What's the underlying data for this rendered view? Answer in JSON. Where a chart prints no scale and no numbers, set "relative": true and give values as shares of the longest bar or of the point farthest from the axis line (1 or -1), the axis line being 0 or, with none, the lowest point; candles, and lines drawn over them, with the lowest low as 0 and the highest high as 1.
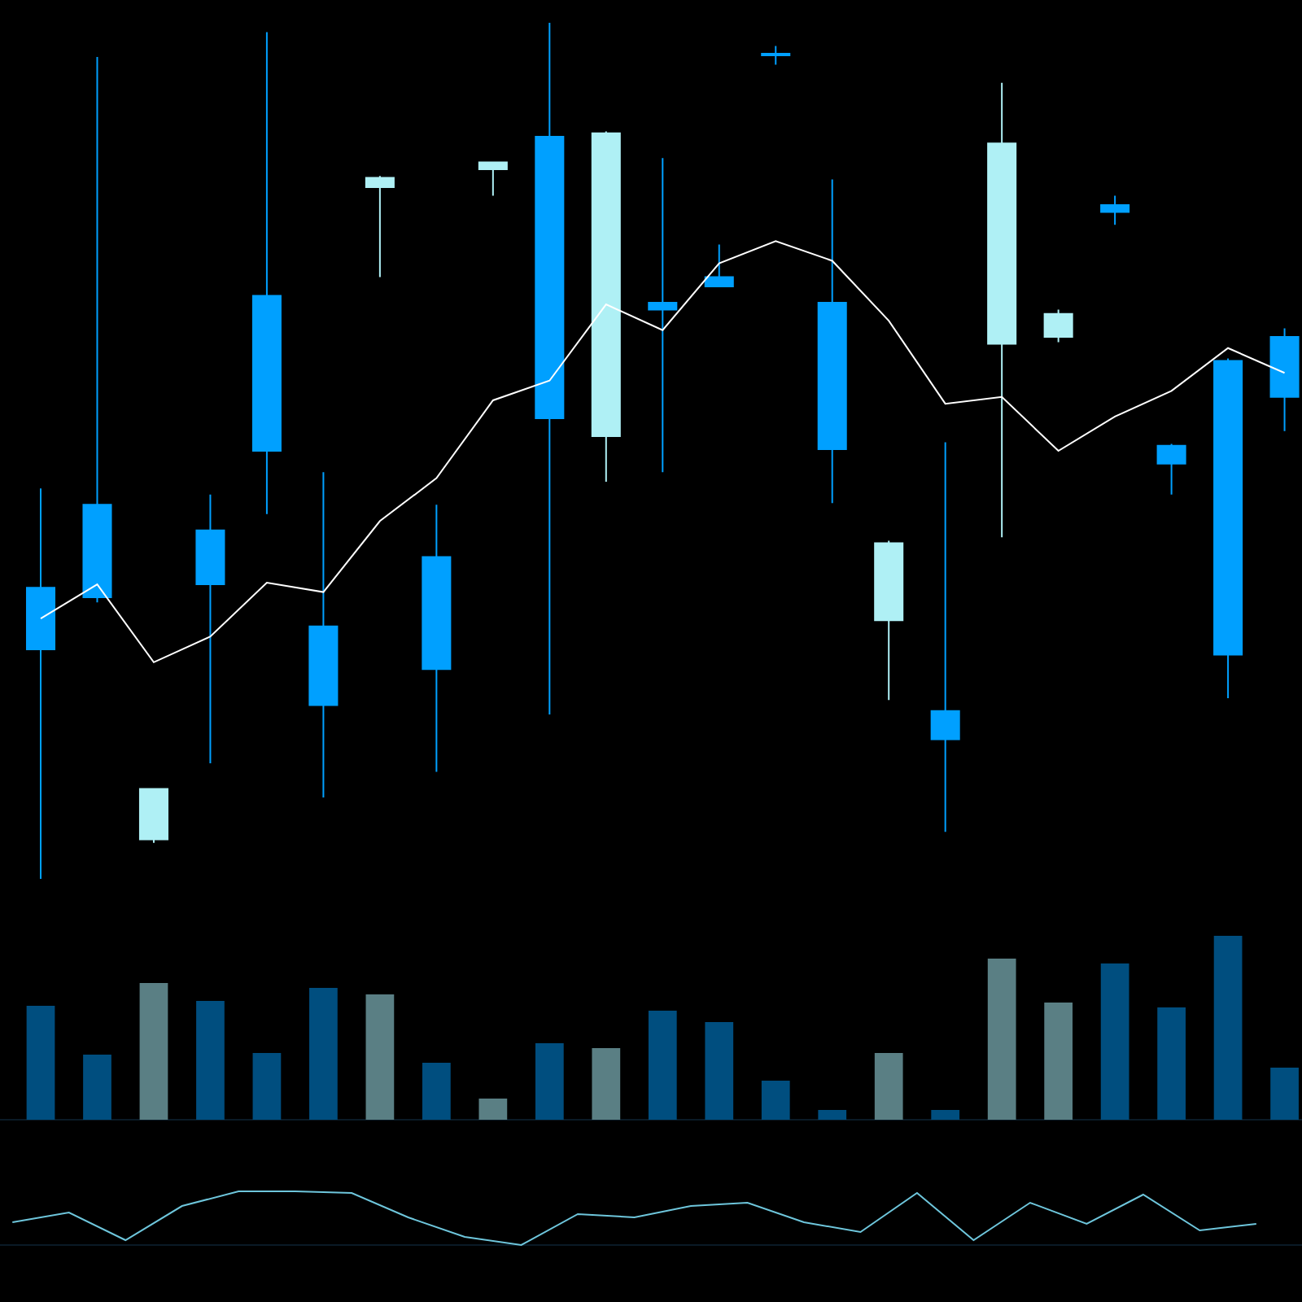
{
  "chart_data": [
    {
      "type": "candlestick",
      "relative": true,
      "categories": [
        null,
        null,
        null,
        null,
        null,
        null,
        null,
        null,
        null,
        null,
        null,
        null,
        null,
        null,
        null,
        null,
        null,
        null,
        null,
        null,
        null,
        null,
        null
      ],
      "ohlc": [
        [
          0.34,
          0.456,
          0,
          0.268
        ],
        [
          0.437,
          0.96,
          0.323,
          0.329
        ],
        [
          0.046,
          0.106,
          0.042,
          0.105
        ],
        [
          0.407,
          0.449,
          0.135,
          0.344
        ],
        [
          0.681,
          0.989,
          0.426,
          0.5
        ],
        [
          0.295,
          0.475,
          0.095,
          0.203
        ],
        [
          0.808,
          0.821,
          0.703,
          0.819
        ],
        [
          0.376,
          0.437,
          0.125,
          0.245
        ],
        [
          0.829,
          0.838,
          0.798,
          0.837
        ],
        [
          0.867,
          1,
          0.192,
          0.538
        ],
        [
          0.517,
          0.873,
          0.464,
          0.871
        ],
        [
          0.673,
          0.842,
          0.475,
          0.665
        ],
        [
          0.703,
          0.741,
          0.692,
          0.692
        ],
        [
          0.964,
          0.973,
          0.951,
          0.962
        ],
        [
          0.673,
          0.817,
          0.439,
          0.502
        ],
        [
          0.302,
          0.395,
          0.209,
          0.392
        ],
        [
          0.196,
          0.51,
          0.055,
          0.163
        ],
        [
          0.625,
          0.93,
          0.399,
          0.859
        ],
        [
          0.633,
          0.665,
          0.627,
          0.66
        ],
        [
          0.787,
          0.798,
          0.764,
          0.779
        ],
        [
          0.506,
          0.508,
          0.449,
          0.485
        ],
        [
          0.605,
          0.608,
          0.211,
          0.262
        ],
        [
          0.633,
          0.643,
          0.523,
          0.563
        ]
      ],
      "colors": [
        "#00a0ff",
        "#00a0ff",
        "#aff0f5",
        "#00a0ff",
        "#00a0ff",
        "#00a0ff",
        "#aff0f5",
        "#00a0ff",
        "#aff0f5",
        "#00a0ff",
        "#aff0f5",
        "#00a0ff",
        "#00a0ff",
        "#00a0ff",
        "#00a0ff",
        "#aff0f5",
        "#00a0ff",
        "#aff0f5",
        "#aff0f5",
        "#00a0ff",
        "#00a0ff",
        "#00a0ff",
        "#00a0ff"
      ],
      "series": [
        {
          "type": "line",
          "color": "#ffffff",
          "values": [
            0.304,
            0.344,
            0.253,
            0.283,
            0.346,
            0.335,
            0.418,
            0.468,
            0.559,
            0.582,
            0.671,
            0.641,
            0.719,
            0.745,
            0.722,
            0.652,
            0.555,
            0.563,
            0.5,
            0.54,
            0.57,
            0.62,
            0.591
          ]
        }
      ]
    },
    {
      "type": "bar",
      "relative": true,
      "categories": [
        null,
        null,
        null,
        null,
        null,
        null,
        null,
        null,
        null,
        null,
        null,
        null,
        null,
        null,
        null,
        null,
        null,
        null,
        null,
        null,
        null,
        null,
        null
      ],
      "values": [
        0.619,
        0.354,
        0.743,
        0.646,
        0.363,
        0.717,
        0.681,
        0.31,
        0.115,
        0.416,
        0.389,
        0.593,
        0.531,
        0.212,
        0.053,
        0.363,
        0.053,
        0.876,
        0.637,
        0.85,
        0.611,
        1,
        0.283
      ],
      "colors": [
        "#004e7f",
        "#004e7f",
        "#5a7f84",
        "#004e7f",
        "#004e7f",
        "#004e7f",
        "#5a7f84",
        "#004e7f",
        "#5a7f84",
        "#004e7f",
        "#5a7f84",
        "#004e7f",
        "#004e7f",
        "#004e7f",
        "#004e7f",
        "#5a7f84",
        "#004e7f",
        "#5a7f84",
        "#5a7f84",
        "#004e7f",
        "#004e7f",
        "#004e7f",
        "#004e7f"
      ]
    },
    {
      "type": "line",
      "relative": true,
      "categories": [
        null,
        null,
        null,
        null,
        null,
        null,
        null,
        null,
        null,
        null,
        null,
        null,
        null,
        null,
        null,
        null,
        null,
        null,
        null,
        null,
        null,
        null,
        null
      ],
      "series": [
        {
          "color": "#6ec6dc",
          "values": [
            0.424,
            0.606,
            0.091,
            0.727,
            1,
            1,
            0.97,
            0.515,
            0.152,
            0,
            0.576,
            0.515,
            0.727,
            0.788,
            0.424,
            0.242,
            0.97,
            0.091,
            0.788,
            0.394,
            0.939,
            0.273,
            0.394
          ]
        }
      ]
    }
  ]
}
